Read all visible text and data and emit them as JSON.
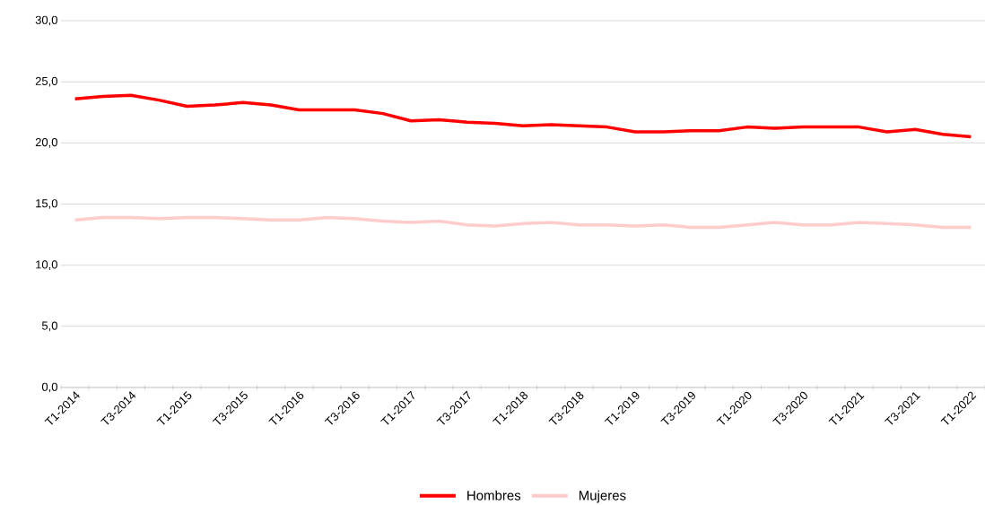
{
  "chart_data": {
    "type": "line",
    "categories": [
      "T1-2014",
      null,
      "T3-2014",
      null,
      "T1-2015",
      null,
      "T3-2015",
      null,
      "T1-2016",
      null,
      "T3-2016",
      null,
      "T1-2017",
      null,
      "T3-2017",
      null,
      "T1-2018",
      null,
      "T3-2018",
      null,
      "T1-2019",
      null,
      "T3-2019",
      null,
      "T1-2020",
      null,
      "T3-2020",
      null,
      "T1-2021",
      null,
      "T3-2021",
      null,
      "T1-2022"
    ],
    "series": [
      {
        "name": "Hombres",
        "color": "#ff0000",
        "values": [
          23.6,
          23.8,
          23.9,
          23.5,
          23.0,
          23.1,
          23.3,
          23.1,
          22.7,
          22.7,
          22.7,
          22.4,
          21.8,
          21.9,
          21.7,
          21.6,
          21.4,
          21.5,
          21.4,
          21.3,
          20.9,
          20.9,
          21.0,
          21.0,
          21.3,
          21.2,
          21.3,
          21.3,
          21.3,
          20.9,
          21.1,
          20.7,
          20.5
        ]
      },
      {
        "name": "Mujeres",
        "color": "#ffcccc",
        "values": [
          13.7,
          13.9,
          13.9,
          13.8,
          13.9,
          13.9,
          13.8,
          13.7,
          13.7,
          13.9,
          13.8,
          13.6,
          13.5,
          13.6,
          13.3,
          13.2,
          13.4,
          13.5,
          13.3,
          13.3,
          13.2,
          13.3,
          13.1,
          13.1,
          13.3,
          13.5,
          13.3,
          13.3,
          13.5,
          13.4,
          13.3,
          13.1,
          13.1
        ]
      }
    ],
    "ylim": [
      0,
      30
    ],
    "yticks": [
      {
        "value": 0,
        "label": "0,0"
      },
      {
        "value": 5,
        "label": "5,0"
      },
      {
        "value": 10,
        "label": "10,0"
      },
      {
        "value": 15,
        "label": "15,0"
      },
      {
        "value": 20,
        "label": "20,0"
      },
      {
        "value": 25,
        "label": "25,0"
      },
      {
        "value": 30,
        "label": "30,0"
      }
    ],
    "grid": "y",
    "legend": "bottom",
    "marker": "none",
    "line_style": "solid"
  }
}
